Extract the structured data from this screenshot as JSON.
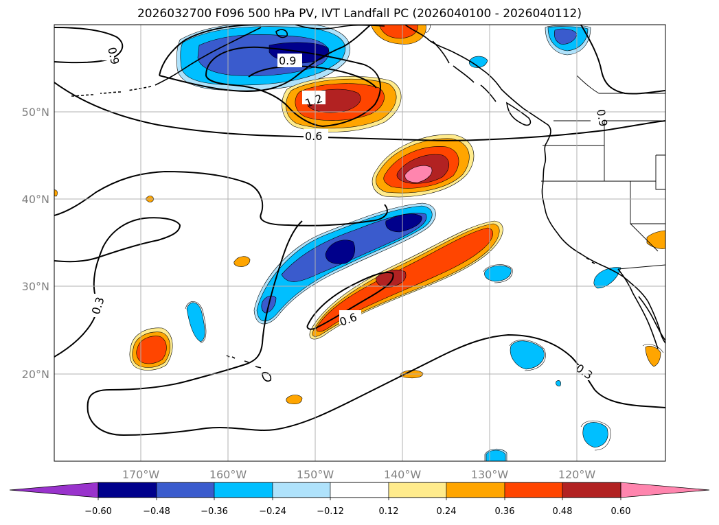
{
  "title": "2026032700 F096 500 hPa PV, IVT Landfall PC (2026040100 - 2026040112)",
  "axes": {
    "lat_labels": [
      "50°N",
      "40°N",
      "30°N",
      "20°N"
    ],
    "lon_labels": [
      "170°W",
      "160°W",
      "150°W",
      "140°W",
      "130°W",
      "120°W"
    ]
  },
  "contour_labels": [
    "0.9",
    "0.9",
    "1.2",
    "0.6",
    "0.9",
    "0.3",
    "0.6",
    "0.3"
  ],
  "colorbar": {
    "ticks": [
      "−0.60",
      "−0.48",
      "−0.36",
      "−0.24",
      "−0.12",
      "0.12",
      "0.24",
      "0.36",
      "0.48",
      "0.60"
    ],
    "colors": {
      "under": "#9933cc",
      "n060": "#00008b",
      "n048": "#3a5bcd",
      "n036": "#00bfff",
      "n024": "#afe2fb",
      "zero": "#ffffff",
      "p012": "#ffeb8c",
      "p024": "#ffa500",
      "p036": "#ff4500",
      "p048": "#b22222",
      "over": "#ff85ae"
    }
  }
}
